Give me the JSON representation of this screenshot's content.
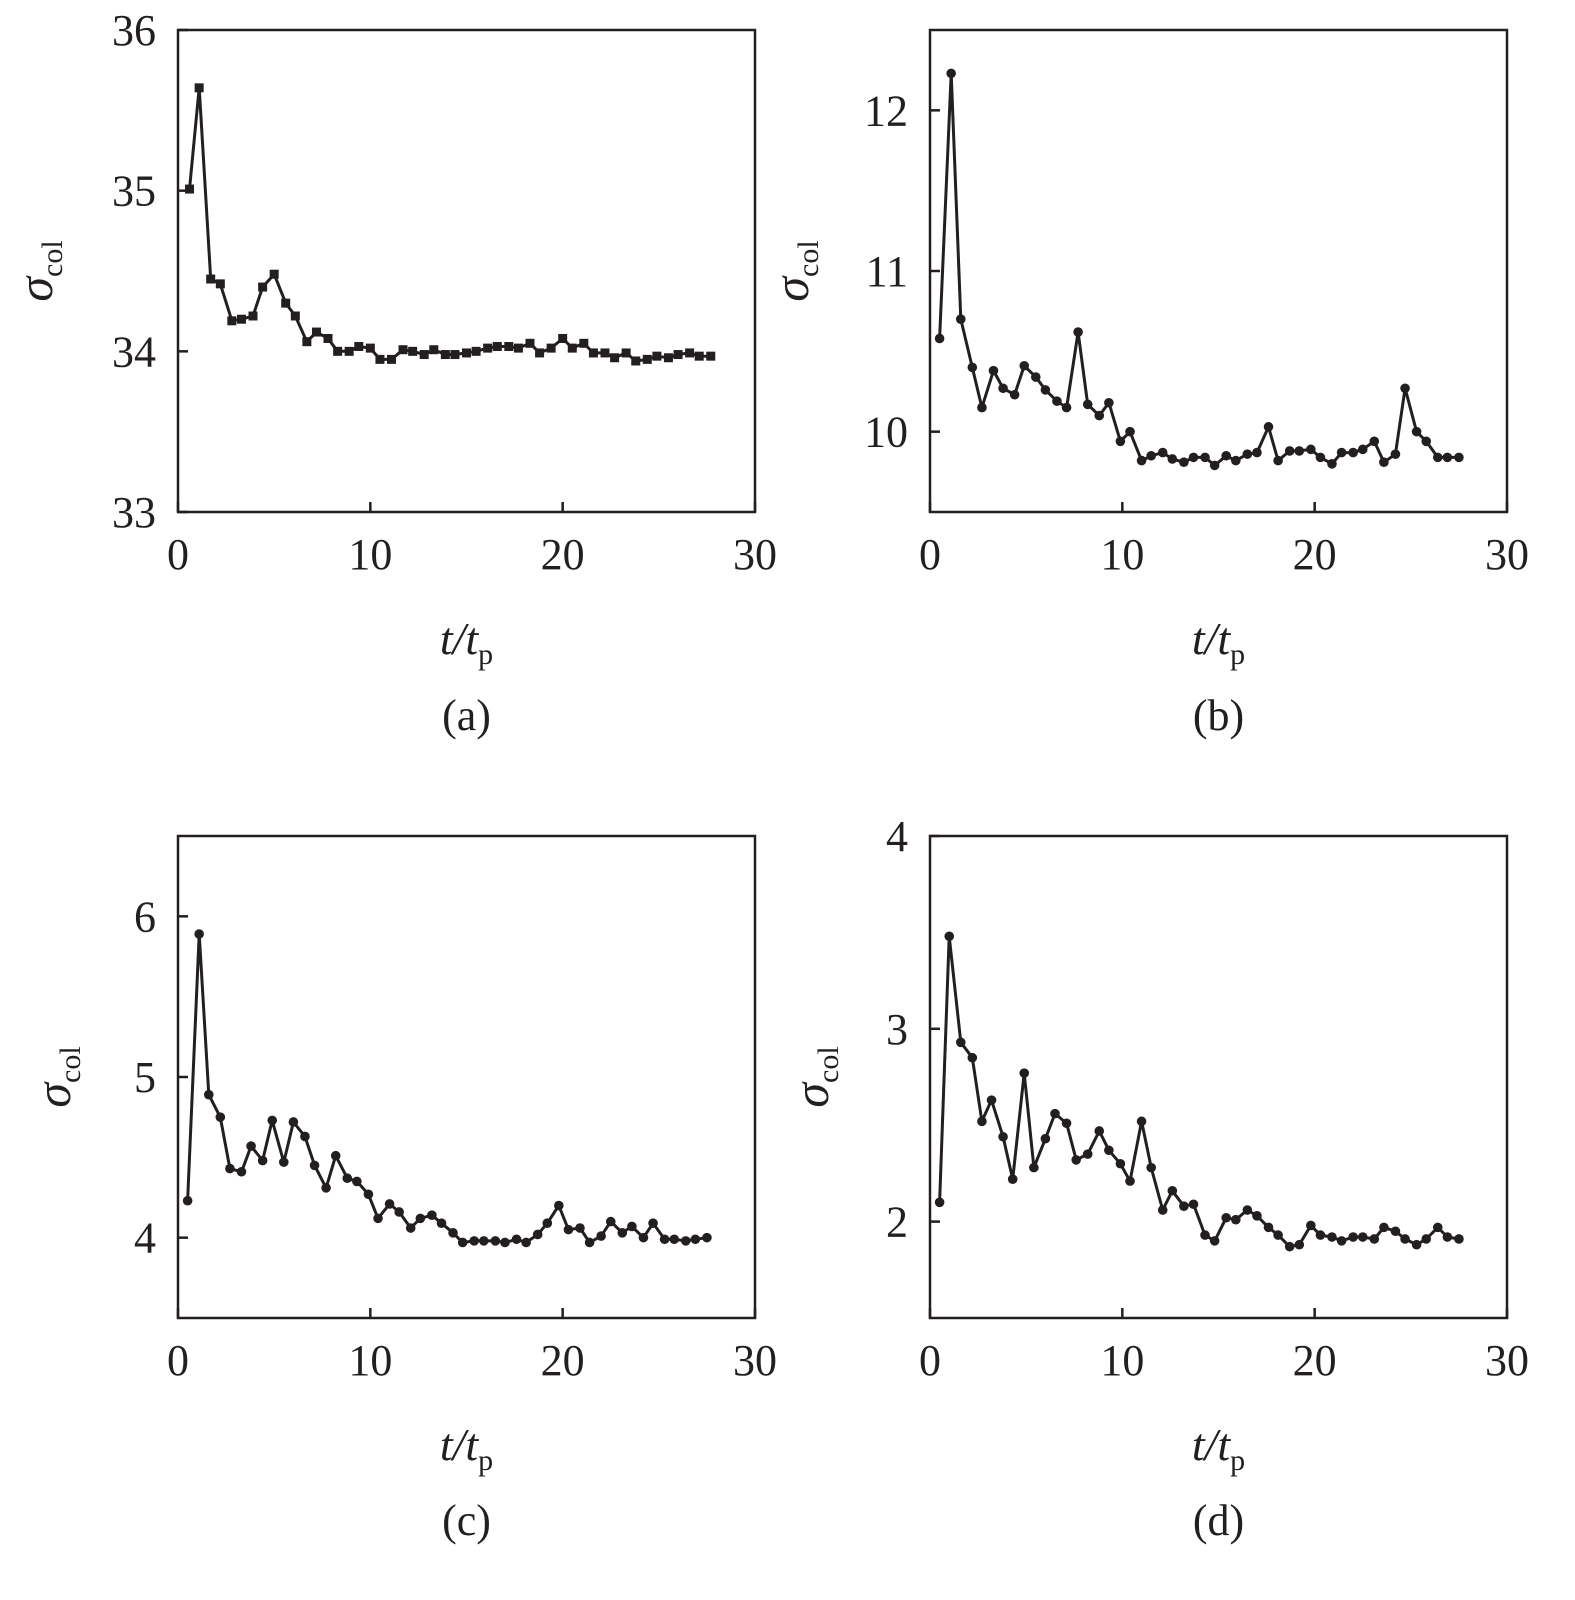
{
  "chart_data": [
    {
      "type": "line",
      "panel_label": "(a)",
      "xlabel": "t/t",
      "xlabel_sub": "p",
      "ylabel": "σ",
      "ylabel_sub": "col",
      "xlim": [
        0,
        30
      ],
      "ylim": [
        33,
        36
      ],
      "xticks": [
        0,
        10,
        20,
        30
      ],
      "yticks": [
        33,
        34,
        35,
        36
      ],
      "marker": "square",
      "x": [
        0.6,
        1.1,
        1.7,
        2.2,
        2.8,
        3.3,
        3.9,
        4.4,
        5.0,
        5.6,
        6.1,
        6.7,
        7.2,
        7.8,
        8.3,
        8.9,
        9.4,
        10.0,
        10.5,
        11.1,
        11.7,
        12.2,
        12.8,
        13.3,
        13.9,
        14.4,
        15.0,
        15.5,
        16.1,
        16.6,
        17.2,
        17.7,
        18.3,
        18.8,
        19.4,
        20.0,
        20.5,
        21.1,
        21.6,
        22.2,
        22.7,
        23.3,
        23.8,
        24.4,
        24.9,
        25.5,
        26.0,
        26.6,
        27.1,
        27.7
      ],
      "y": [
        35.01,
        35.64,
        34.45,
        34.42,
        34.19,
        34.2,
        34.22,
        34.4,
        34.48,
        34.3,
        34.22,
        34.06,
        34.12,
        34.08,
        34.0,
        34.0,
        34.03,
        34.02,
        33.95,
        33.95,
        34.01,
        34.0,
        33.98,
        34.01,
        33.98,
        33.98,
        33.99,
        34.0,
        34.02,
        34.03,
        34.03,
        34.02,
        34.05,
        33.99,
        34.02,
        34.08,
        34.02,
        34.05,
        33.99,
        33.99,
        33.96,
        33.99,
        33.94,
        33.95,
        33.97,
        33.96,
        33.98,
        33.99,
        33.97,
        33.97
      ]
    },
    {
      "type": "line",
      "panel_label": "(b)",
      "xlabel": "t/t",
      "xlabel_sub": "p",
      "ylabel": "σ",
      "ylabel_sub": "col",
      "xlim": [
        0,
        30
      ],
      "ylim": [
        9.5,
        12.5
      ],
      "xticks": [
        0,
        10,
        20,
        30
      ],
      "yticks": [
        10,
        11,
        12
      ],
      "marker": "circle",
      "x": [
        0.5,
        1.1,
        1.6,
        2.2,
        2.7,
        3.3,
        3.8,
        4.4,
        4.9,
        5.5,
        6.0,
        6.6,
        7.1,
        7.7,
        8.2,
        8.8,
        9.3,
        9.9,
        10.4,
        11.0,
        11.5,
        12.1,
        12.6,
        13.2,
        13.7,
        14.3,
        14.8,
        15.4,
        15.9,
        16.5,
        17.0,
        17.6,
        18.1,
        18.7,
        19.2,
        19.8,
        20.3,
        20.9,
        21.4,
        22.0,
        22.5,
        23.1,
        23.6,
        24.2,
        24.7,
        25.3,
        25.8,
        26.4,
        26.9,
        27.5
      ],
      "y": [
        10.58,
        12.23,
        10.7,
        10.4,
        10.15,
        10.38,
        10.27,
        10.23,
        10.41,
        10.34,
        10.26,
        10.19,
        10.15,
        10.62,
        10.17,
        10.1,
        10.18,
        9.94,
        10.0,
        9.82,
        9.85,
        9.87,
        9.83,
        9.81,
        9.84,
        9.84,
        9.79,
        9.85,
        9.82,
        9.86,
        9.87,
        10.03,
        9.82,
        9.88,
        9.88,
        9.89,
        9.84,
        9.8,
        9.87,
        9.87,
        9.89,
        9.94,
        9.81,
        9.86,
        10.27,
        10.0,
        9.94,
        9.84,
        9.84,
        9.84
      ]
    },
    {
      "type": "line",
      "panel_label": "(c)",
      "xlabel": "t/t",
      "xlabel_sub": "p",
      "ylabel": "σ",
      "ylabel_sub": "col",
      "xlim": [
        0,
        30
      ],
      "ylim": [
        3.5,
        6.5
      ],
      "xticks": [
        0,
        10,
        20,
        30
      ],
      "yticks": [
        4,
        5,
        6
      ],
      "marker": "circle",
      "x": [
        0.5,
        1.1,
        1.6,
        2.2,
        2.7,
        3.3,
        3.8,
        4.4,
        4.9,
        5.5,
        6.0,
        6.6,
        7.1,
        7.7,
        8.2,
        8.8,
        9.3,
        9.9,
        10.4,
        11.0,
        11.5,
        12.1,
        12.6,
        13.2,
        13.7,
        14.3,
        14.8,
        15.4,
        15.9,
        16.5,
        17.0,
        17.6,
        18.1,
        18.7,
        19.2,
        19.8,
        20.3,
        20.9,
        21.4,
        22.0,
        22.5,
        23.1,
        23.6,
        24.2,
        24.7,
        25.3,
        25.8,
        26.4,
        26.9,
        27.5
      ],
      "y": [
        4.23,
        5.89,
        4.89,
        4.75,
        4.43,
        4.41,
        4.57,
        4.48,
        4.73,
        4.47,
        4.72,
        4.63,
        4.45,
        4.31,
        4.51,
        4.37,
        4.35,
        4.27,
        4.12,
        4.21,
        4.16,
        4.06,
        4.12,
        4.14,
        4.09,
        4.03,
        3.97,
        3.98,
        3.98,
        3.98,
        3.97,
        3.99,
        3.97,
        4.02,
        4.09,
        4.2,
        4.05,
        4.06,
        3.97,
        4.01,
        4.1,
        4.03,
        4.07,
        4.0,
        4.09,
        3.99,
        3.99,
        3.98,
        3.99,
        4.0
      ]
    },
    {
      "type": "line",
      "panel_label": "(d)",
      "xlabel": "t/t",
      "xlabel_sub": "p",
      "ylabel": "σ",
      "ylabel_sub": "col",
      "xlim": [
        0,
        30
      ],
      "ylim": [
        1.5,
        4
      ],
      "xticks": [
        0,
        10,
        20,
        30
      ],
      "yticks": [
        2,
        3,
        4
      ],
      "marker": "circle",
      "x": [
        0.5,
        1.0,
        1.6,
        2.2,
        2.7,
        3.2,
        3.8,
        4.3,
        4.9,
        5.4,
        6.0,
        6.5,
        7.1,
        7.6,
        8.2,
        8.8,
        9.3,
        9.9,
        10.4,
        11.0,
        11.5,
        12.1,
        12.6,
        13.2,
        13.7,
        14.3,
        14.8,
        15.4,
        15.9,
        16.5,
        17.0,
        17.6,
        18.1,
        18.7,
        19.2,
        19.8,
        20.3,
        20.9,
        21.4,
        22.0,
        22.5,
        23.1,
        23.6,
        24.2,
        24.7,
        25.3,
        25.8,
        26.4,
        26.9,
        27.5
      ],
      "y": [
        2.1,
        3.48,
        2.93,
        2.85,
        2.52,
        2.63,
        2.44,
        2.22,
        2.77,
        2.28,
        2.43,
        2.56,
        2.51,
        2.32,
        2.35,
        2.47,
        2.37,
        2.3,
        2.21,
        2.52,
        2.28,
        2.06,
        2.16,
        2.08,
        2.09,
        1.93,
        1.9,
        2.02,
        2.01,
        2.06,
        2.03,
        1.97,
        1.93,
        1.87,
        1.88,
        1.98,
        1.93,
        1.92,
        1.9,
        1.92,
        1.92,
        1.91,
        1.97,
        1.95,
        1.91,
        1.88,
        1.91,
        1.97,
        1.92,
        1.91
      ]
    }
  ]
}
